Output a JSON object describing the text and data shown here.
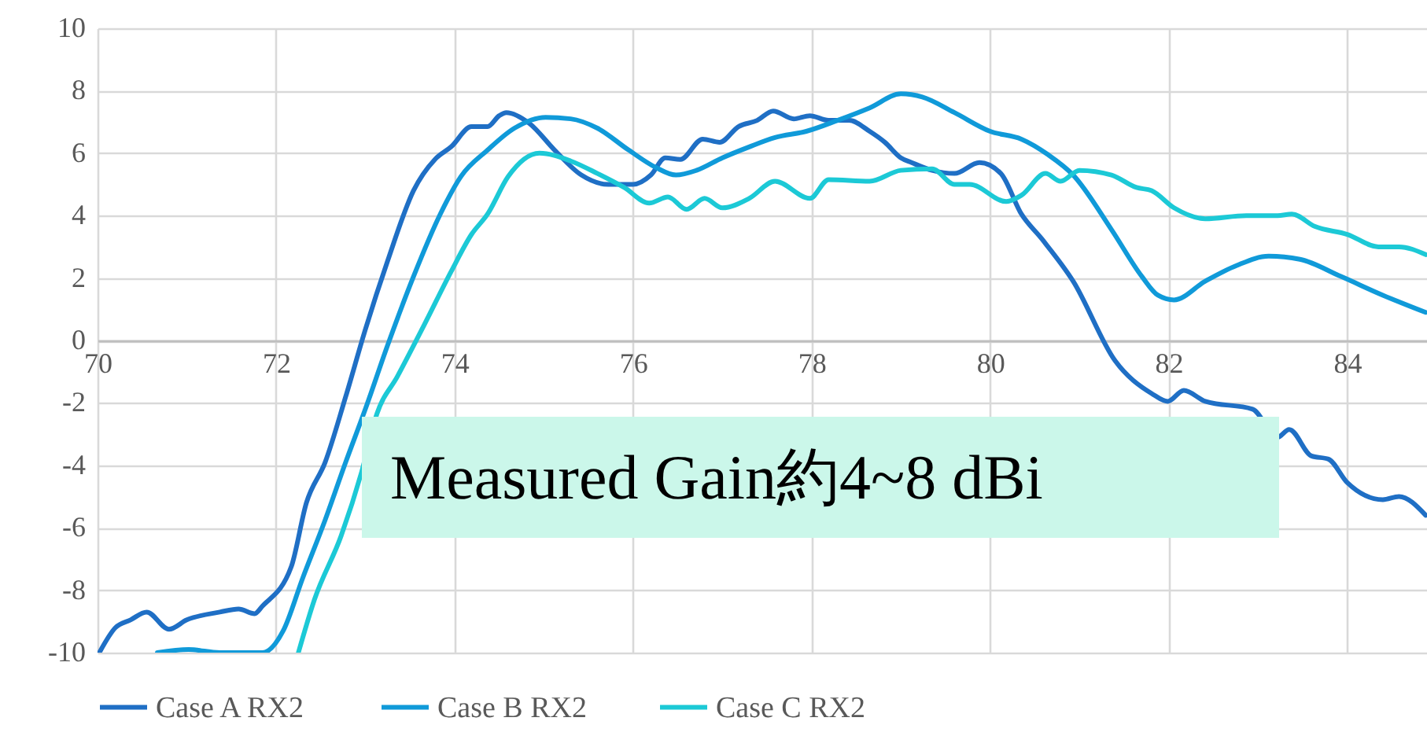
{
  "chart_data": {
    "type": "line",
    "xlim": [
      70,
      85
    ],
    "xticks": [
      70,
      72,
      74,
      76,
      78,
      80,
      82,
      84
    ],
    "ylim": [
      -10,
      10
    ],
    "yticks": [
      -10,
      -8,
      -6,
      -4,
      -2,
      0,
      2,
      4,
      6,
      8,
      10
    ],
    "grid": true,
    "legend": "bottom",
    "line_style": "solid",
    "marker": "none",
    "annotations": [
      "Measured Gain約4~8 dBi"
    ],
    "series": [
      {
        "name": "Case A RX2",
        "color": "#1f6fc5",
        "x": [
          70.02,
          70.2,
          70.37,
          70.55,
          70.8,
          71.0,
          71.37,
          71.58,
          71.76,
          71.85,
          72.17,
          72.34,
          72.55,
          72.78,
          73.0,
          73.25,
          73.54,
          73.78,
          73.96,
          74.19,
          74.37,
          74.5,
          74.58,
          74.84,
          75.12,
          75.42,
          75.72,
          76.0,
          76.2,
          76.36,
          76.53,
          76.78,
          76.97,
          77.18,
          77.39,
          77.57,
          77.8,
          77.98,
          78.19,
          78.42,
          78.65,
          78.82,
          79.0,
          79.12,
          79.35,
          79.6,
          79.88,
          80.12,
          80.35,
          80.58,
          80.93,
          81.4,
          81.81,
          81.99,
          82.17,
          82.41,
          82.94,
          83.22,
          83.35,
          83.6,
          83.79,
          84.0,
          84.4,
          84.58,
          84.88
        ],
        "values": [
          -10,
          -9.2,
          -8.95,
          -8.7,
          -9.25,
          -8.95,
          -8.7,
          -8.6,
          -8.75,
          -8.5,
          -7.25,
          -5.2,
          -3.9,
          -1.8,
          0.35,
          2.55,
          4.8,
          5.8,
          6.2,
          6.85,
          6.85,
          7.2,
          7.3,
          6.95,
          6.1,
          5.3,
          5.0,
          5.0,
          5.3,
          5.85,
          5.8,
          6.45,
          6.35,
          6.85,
          7.05,
          7.35,
          7.1,
          7.2,
          7.05,
          7.05,
          6.7,
          6.35,
          5.85,
          5.7,
          5.45,
          5.35,
          5.7,
          5.35,
          4.05,
          3.25,
          1.9,
          -0.65,
          -1.7,
          -1.95,
          -1.6,
          -1.95,
          -2.2,
          -3.1,
          -2.85,
          -3.7,
          -3.8,
          -4.55,
          -5.1,
          -5.0,
          -5.6
        ]
      },
      {
        "name": "Case B RX2",
        "color": "#109ad9",
        "x": [
          70.67,
          71.02,
          71.37,
          71.85,
          72.08,
          72.3,
          72.55,
          72.78,
          73.0,
          73.25,
          73.54,
          73.84,
          74.07,
          74.37,
          74.67,
          75.02,
          75.3,
          75.6,
          75.95,
          76.25,
          76.48,
          76.71,
          77.0,
          77.3,
          77.59,
          77.94,
          78.29,
          78.65,
          79.0,
          79.24,
          79.6,
          80.0,
          80.35,
          80.65,
          80.93,
          81.36,
          81.7,
          81.88,
          82.06,
          82.41,
          82.76,
          83.12,
          83.47,
          83.93,
          84.4,
          84.88
        ],
        "values": [
          -10,
          -9.9,
          -10,
          -10,
          -9.3,
          -7.6,
          -5.75,
          -3.9,
          -2.2,
          -0.15,
          2.05,
          4.05,
          5.25,
          6.1,
          6.8,
          7.15,
          7.1,
          6.8,
          6.1,
          5.55,
          5.3,
          5.45,
          5.85,
          6.2,
          6.5,
          6.7,
          7.05,
          7.45,
          7.9,
          7.8,
          7.3,
          6.7,
          6.45,
          5.95,
          5.3,
          3.55,
          2.05,
          1.45,
          1.3,
          1.9,
          2.4,
          2.7,
          2.6,
          2.05,
          1.45,
          0.9
        ]
      },
      {
        "name": "Case C RX2",
        "color": "#1cc9d6",
        "x": [
          72.25,
          72.43,
          72.73,
          72.96,
          73.13,
          73.36,
          73.66,
          73.96,
          74.19,
          74.37,
          74.6,
          74.95,
          75.3,
          75.6,
          75.9,
          76.18,
          76.39,
          76.6,
          76.8,
          77.0,
          77.3,
          77.59,
          77.98,
          78.19,
          78.65,
          79.0,
          79.35,
          79.6,
          79.77,
          80.18,
          80.35,
          80.62,
          80.79,
          81.0,
          81.36,
          81.64,
          81.81,
          82.06,
          82.41,
          82.87,
          83.22,
          83.38,
          83.64,
          84.0,
          84.35,
          84.58,
          84.88
        ],
        "values": [
          -10,
          -8.3,
          -6.25,
          -4.2,
          -2.35,
          -1.15,
          0.5,
          2.2,
          3.4,
          4.05,
          5.25,
          6.0,
          5.75,
          5.35,
          4.9,
          4.4,
          4.6,
          4.2,
          4.55,
          4.25,
          4.55,
          5.1,
          4.55,
          5.15,
          5.1,
          5.45,
          5.5,
          5.0,
          5.0,
          4.45,
          4.65,
          5.35,
          5.1,
          5.45,
          5.3,
          4.9,
          4.8,
          4.25,
          3.9,
          4.0,
          4.0,
          4.05,
          3.65,
          3.4,
          3.0,
          3.0,
          2.75
        ]
      }
    ]
  }
}
